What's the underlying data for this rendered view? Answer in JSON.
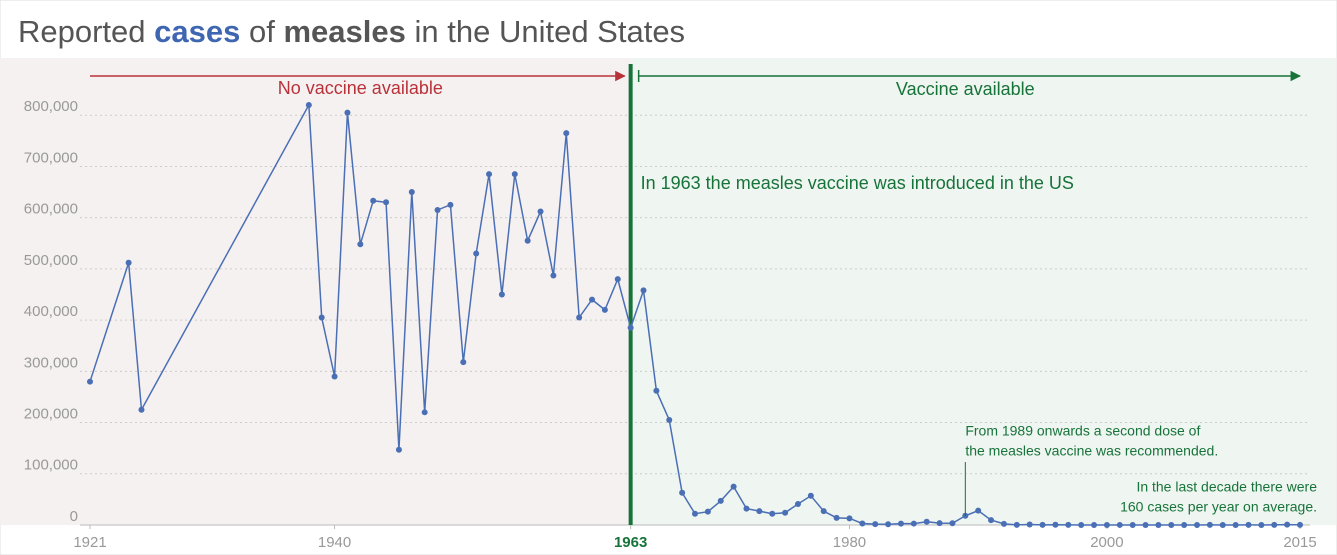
{
  "chart_data": {
    "type": "line",
    "title_parts": [
      "Reported",
      "cases",
      "of",
      "measles",
      "in the United States"
    ],
    "era_labels": {
      "before": "No vaccine available",
      "after": "Vaccine available"
    },
    "vaccine_year": 1963,
    "vaccine_note": "In 1963 the measles vaccine was introduced in the US",
    "second_dose": {
      "x": 1989,
      "lines": [
        "From 1989 onwards a second dose of",
        "the measles vaccine was recommended."
      ]
    },
    "last_decade_note": [
      "In the last decade there were",
      "160 cases per year on average."
    ],
    "xlim": [
      1921,
      2015
    ],
    "xticks": [
      1921,
      1940,
      1963,
      1980,
      2000,
      2015
    ],
    "ylim": [
      0,
      900000
    ],
    "yticks": [
      0,
      {
        "value": 100000,
        "label": "100,000"
      },
      {
        "value": 200000,
        "label": "200,000"
      },
      {
        "value": 300000,
        "label": "300,000"
      },
      {
        "value": 400000,
        "label": "400,000"
      },
      {
        "value": 500000,
        "label": "500,000"
      },
      {
        "value": 600000,
        "label": "600,000"
      },
      {
        "value": 700000,
        "label": "700,000"
      },
      {
        "value": 800000,
        "label": "800,000"
      }
    ],
    "grid": true,
    "series": [
      {
        "name": "cases",
        "color": "#4a6fb5",
        "x": [
          1921,
          1924,
          1925,
          1938,
          1939,
          1940,
          1941,
          1942,
          1943,
          1944,
          1945,
          1946,
          1947,
          1948,
          1949,
          1950,
          1951,
          1952,
          1953,
          1954,
          1955,
          1956,
          1957,
          1958,
          1959,
          1960,
          1961,
          1962,
          1963,
          1964,
          1965,
          1966,
          1967,
          1968,
          1969,
          1970,
          1971,
          1972,
          1973,
          1974,
          1975,
          1976,
          1977,
          1978,
          1979,
          1980,
          1981,
          1982,
          1983,
          1984,
          1985,
          1986,
          1987,
          1988,
          1989,
          1990,
          1991,
          1992,
          1993,
          1994,
          1995,
          1996,
          1997,
          1998,
          1999,
          2000,
          2001,
          2002,
          2003,
          2004,
          2005,
          2006,
          2007,
          2008,
          2009,
          2010,
          2011,
          2012,
          2013,
          2014,
          2015
        ],
        "values": [
          280000,
          512000,
          225000,
          820000,
          405000,
          290000,
          805000,
          548000,
          633000,
          630000,
          147000,
          650000,
          220000,
          615000,
          625000,
          318000,
          530000,
          685000,
          450000,
          685000,
          555000,
          612000,
          487000,
          765000,
          405000,
          440000,
          420000,
          480000,
          385000,
          458000,
          262000,
          205000,
          63000,
          22000,
          26000,
          47000,
          75000,
          32000,
          27000,
          22000,
          24000,
          41000,
          57000,
          27000,
          14000,
          13000,
          3000,
          1700,
          1500,
          2600,
          2800,
          6300,
          3700,
          3400,
          18000,
          28000,
          9600,
          2200,
          300,
          1000,
          309,
          508,
          138,
          100,
          100,
          86,
          116,
          44,
          56,
          37,
          66,
          55,
          43,
          140,
          71,
          63,
          220,
          55,
          187,
          667,
          188
        ]
      }
    ]
  }
}
